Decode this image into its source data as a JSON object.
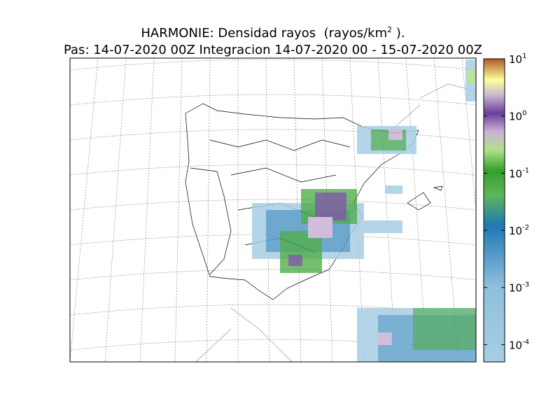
{
  "header": {
    "title": {
      "text": "HARMONIE: Densidad rayos  (rayos/km",
      "superscript": "2",
      "suffix": " )."
    },
    "subtitle": "Pas: 14-07-2020 00Z Integracion 14-07-2020 00 - 15-07-2020 00Z"
  },
  "colorbar": {
    "scale": "log",
    "lim": [
      5e-05,
      10
    ],
    "ticks": [
      {
        "value": 10,
        "label": "10",
        "exponent": "1"
      },
      {
        "value": 1,
        "label": "10",
        "exponent": "0"
      },
      {
        "value": 0.1,
        "label": "10",
        "exponent": "-1"
      },
      {
        "value": 0.01,
        "label": "10",
        "exponent": "-2"
      },
      {
        "value": 0.001,
        "label": "10",
        "exponent": "-3"
      },
      {
        "value": 0.0001,
        "label": "10",
        "exponent": "-4"
      }
    ]
  }
}
